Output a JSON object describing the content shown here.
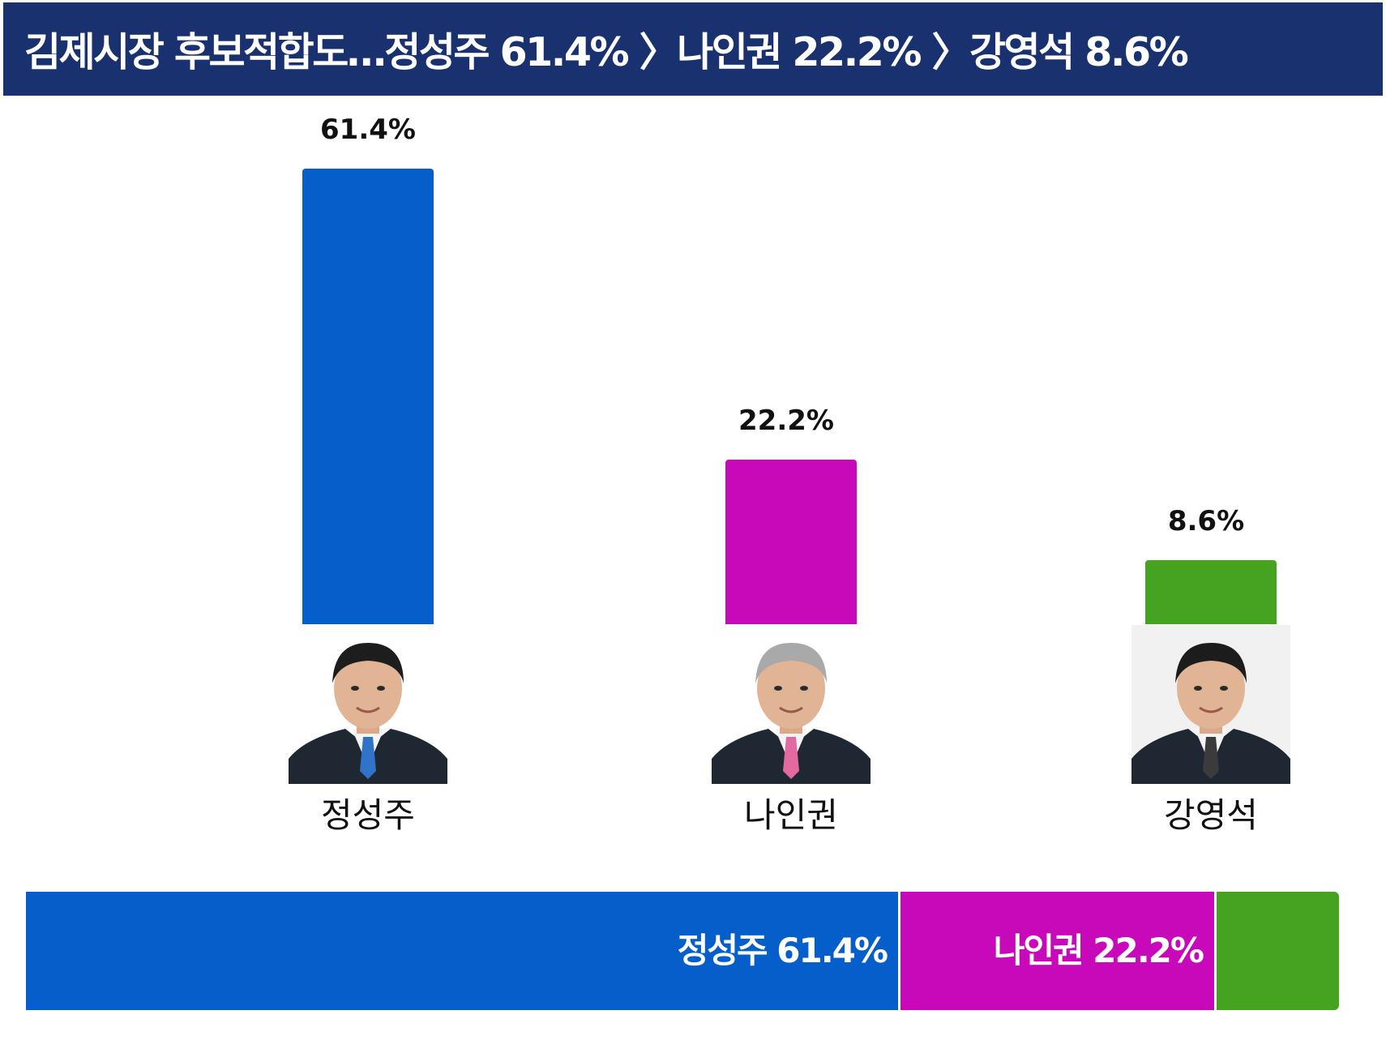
{
  "header": {
    "title": "김제시장 후보적합도…정성주 61.4% 〉나인권 22.2% 〉강영석 8.6%",
    "background": "#1a3170"
  },
  "chart_data": {
    "type": "bar",
    "categories": [
      "정성주",
      "나인권",
      "강영석"
    ],
    "values": [
      61.4,
      22.2,
      8.6
    ],
    "value_labels": [
      "61.4%",
      "22.2%",
      "8.6%"
    ],
    "colors": [
      "#055ec9",
      "#c809b9",
      "#45a320"
    ],
    "ylim": [
      0,
      61.4
    ],
    "grid": false,
    "legend": "none"
  },
  "candidates": [
    {
      "name": "정성주",
      "value_label": "61.4%",
      "stack_label": "정성주 61.4%",
      "portrait_icon": "portrait-photo-icon"
    },
    {
      "name": "나인권",
      "value_label": "22.2%",
      "stack_label": "나인권 22.2%",
      "portrait_icon": "portrait-photo-icon"
    },
    {
      "name": "강영석",
      "value_label": "8.6%",
      "stack_label": "",
      "portrait_icon": "portrait-photo-icon"
    }
  ]
}
